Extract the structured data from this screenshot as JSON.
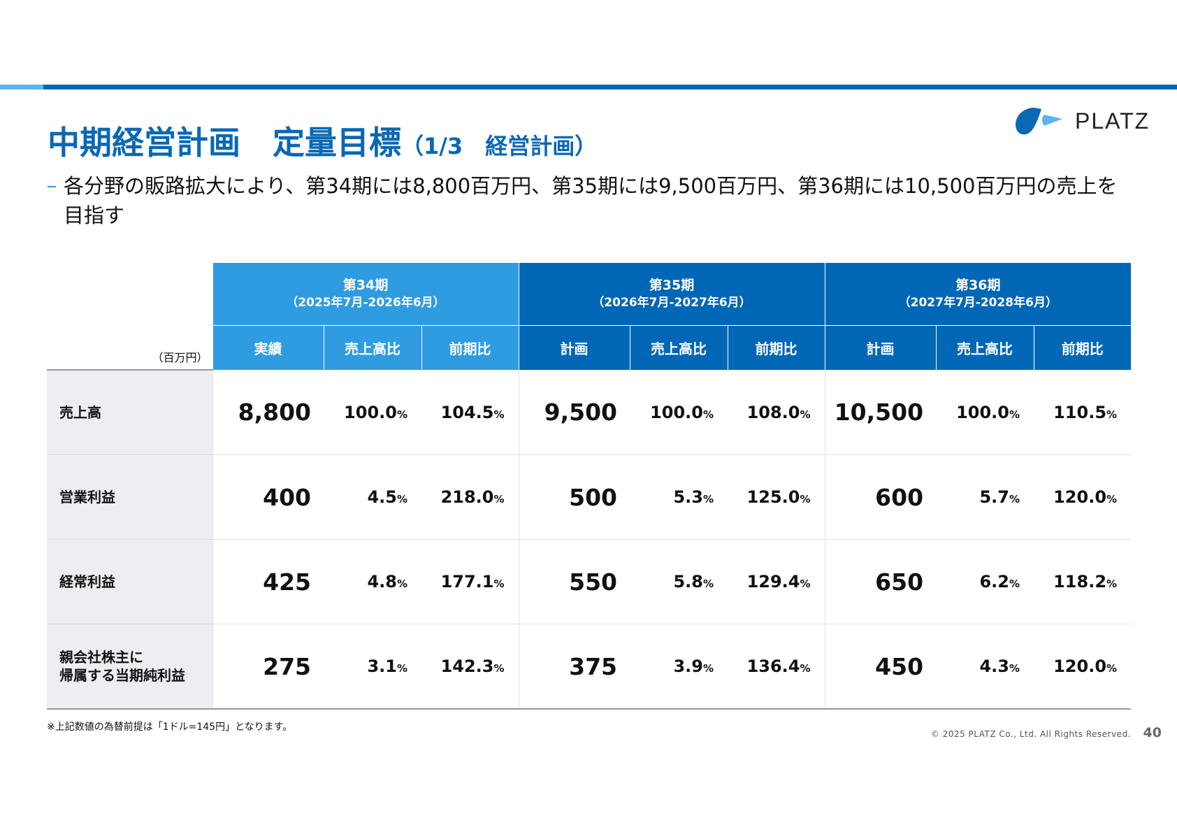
{
  "header": {
    "title": "中期経営計画　定量目標",
    "title_sub": "（1/3　経営計画）",
    "logo": "PLATZ"
  },
  "lead": "各分野の販路拡大により、第34期には8,800百万円、第35期には9,500百万円、第36期には10,500百万円の売上を目指す",
  "table": {
    "unit": "（百万円）",
    "periods": [
      {
        "name": "第34期",
        "range": "（2025年7月-2026年6月）",
        "columns": [
          "実績",
          "売上高比",
          "前期比"
        ]
      },
      {
        "name": "第35期",
        "range": "（2026年7月-2027年6月）",
        "columns": [
          "計画",
          "売上高比",
          "前期比"
        ]
      },
      {
        "name": "第36期",
        "range": "（2027年7月-2028年6月）",
        "columns": [
          "計画",
          "売上高比",
          "前期比"
        ]
      }
    ],
    "rows": [
      {
        "label": [
          "売上高"
        ],
        "cells": [
          "8,800",
          {
            "value": "100.0",
            "unit": "%"
          },
          {
            "value": "104.5",
            "unit": "%"
          },
          "9,500",
          {
            "value": "100.0",
            "unit": "%"
          },
          {
            "value": "108.0",
            "unit": "%"
          },
          "10,500",
          {
            "value": "100.0",
            "unit": "%"
          },
          {
            "value": "110.5",
            "unit": "%"
          }
        ]
      },
      {
        "label": [
          "営業利益"
        ],
        "cells": [
          "400",
          {
            "value": "4.5",
            "unit": "%"
          },
          {
            "value": "218.0",
            "unit": "%"
          },
          "500",
          {
            "value": "5.3",
            "unit": "%"
          },
          {
            "value": "125.0",
            "unit": "%"
          },
          "600",
          {
            "value": "5.7",
            "unit": "%"
          },
          {
            "value": "120.0",
            "unit": "%"
          }
        ]
      },
      {
        "label": [
          "経常利益"
        ],
        "cells": [
          "425",
          {
            "value": "4.8",
            "unit": "%"
          },
          {
            "value": "177.1",
            "unit": "%"
          },
          "550",
          {
            "value": "5.8",
            "unit": "%"
          },
          {
            "value": "129.4",
            "unit": "%"
          },
          "650",
          {
            "value": "6.2",
            "unit": "%"
          },
          {
            "value": "118.2",
            "unit": "%"
          }
        ]
      },
      {
        "label": [
          "親会社株主に",
          "帰属する当期純利益"
        ],
        "cells": [
          "275",
          {
            "value": "3.1",
            "unit": "%"
          },
          {
            "value": "142.3",
            "unit": "%"
          },
          "375",
          {
            "value": "3.9",
            "unit": "%"
          },
          {
            "value": "136.4",
            "unit": "%"
          },
          "450",
          {
            "value": "4.3",
            "unit": "%"
          },
          {
            "value": "120.0",
            "unit": "%"
          }
        ]
      }
    ]
  },
  "note": "※上記数値の為替前提は「1ドル=145円」となります。",
  "footer": {
    "copyright": "© 2025 PLATZ Co., Ltd. All Rights Reserved.",
    "page": "40"
  }
}
